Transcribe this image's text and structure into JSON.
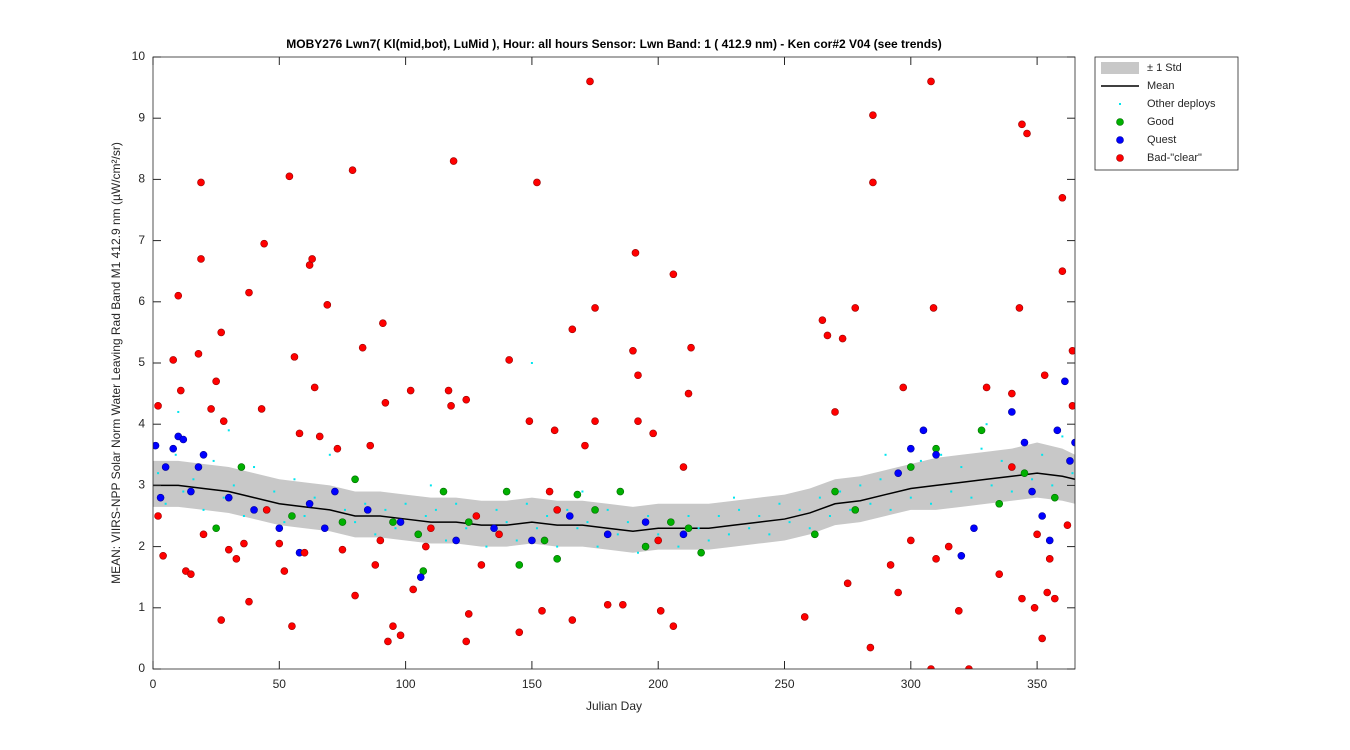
{
  "chart_data": {
    "type": "scatter",
    "title": "MOBY276   Lwn7( Kl(mid,bot), LuMid ),   Hour: all hours  Sensor: Lwn Band: 1 ( 412.9 nm)  - Ken cor#2 V04 (see trends)",
    "xlabel": "Julian Day",
    "ylabel": "MEAN: VIIRS-NPP Solar Norm Water Leaving Rad Band M1 412.9 nm (µW/cm²/sr)",
    "xlim": [
      0,
      365
    ],
    "ylim": [
      0,
      10
    ],
    "xticks": [
      0,
      50,
      100,
      150,
      200,
      250,
      300,
      350
    ],
    "yticks": [
      0,
      1,
      2,
      3,
      4,
      5,
      6,
      7,
      8,
      9,
      10
    ],
    "legend": "outside-top-right",
    "series": [
      {
        "name": "± 1 Std",
        "style": "band",
        "color": "#c8c8c8",
        "x": [
          0,
          10,
          20,
          30,
          40,
          50,
          60,
          70,
          80,
          90,
          100,
          110,
          120,
          130,
          140,
          150,
          160,
          170,
          180,
          190,
          200,
          210,
          220,
          230,
          240,
          250,
          260,
          270,
          280,
          290,
          300,
          310,
          320,
          330,
          340,
          350,
          360,
          365
        ],
        "values": [
          3.4,
          3.4,
          3.35,
          3.3,
          3.2,
          3.1,
          3.05,
          3.0,
          2.9,
          2.9,
          2.85,
          2.8,
          2.8,
          2.75,
          2.75,
          2.8,
          2.75,
          2.75,
          2.7,
          2.65,
          2.7,
          2.7,
          2.7,
          2.75,
          2.8,
          2.85,
          2.95,
          3.1,
          3.15,
          3.25,
          3.35,
          3.45,
          3.5,
          3.55,
          3.6,
          3.7,
          3.6,
          3.5
        ],
        "lower": [
          2.65,
          2.65,
          2.6,
          2.55,
          2.45,
          2.35,
          2.3,
          2.25,
          2.15,
          2.15,
          2.1,
          2.05,
          2.05,
          2.0,
          2.0,
          2.05,
          2.0,
          2.0,
          1.95,
          1.9,
          1.95,
          1.95,
          1.95,
          2.0,
          2.05,
          2.1,
          2.2,
          2.35,
          2.4,
          2.5,
          2.6,
          2.6,
          2.65,
          2.7,
          2.75,
          2.8,
          2.75,
          2.7
        ]
      },
      {
        "name": "Mean",
        "style": "line",
        "color": "#000000",
        "x": [
          0,
          10,
          20,
          30,
          40,
          50,
          60,
          70,
          80,
          90,
          100,
          110,
          120,
          130,
          140,
          150,
          160,
          170,
          180,
          190,
          200,
          210,
          220,
          230,
          240,
          250,
          260,
          270,
          280,
          290,
          300,
          310,
          320,
          330,
          340,
          350,
          360,
          365
        ],
        "values": [
          3.0,
          3.0,
          2.95,
          2.9,
          2.8,
          2.7,
          2.65,
          2.6,
          2.5,
          2.5,
          2.45,
          2.4,
          2.4,
          2.35,
          2.35,
          2.4,
          2.35,
          2.35,
          2.3,
          2.25,
          2.3,
          2.3,
          2.3,
          2.35,
          2.4,
          2.45,
          2.55,
          2.7,
          2.75,
          2.85,
          2.95,
          3.0,
          3.05,
          3.1,
          3.15,
          3.2,
          3.15,
          3.1
        ]
      },
      {
        "name": "Other deploys",
        "style": "point",
        "color": "#00e5ee",
        "x": [
          2,
          5,
          9,
          12,
          16,
          20,
          24,
          28,
          32,
          36,
          40,
          44,
          48,
          52,
          56,
          60,
          64,
          68,
          72,
          76,
          80,
          84,
          88,
          92,
          96,
          100,
          104,
          108,
          112,
          116,
          120,
          124,
          128,
          132,
          136,
          140,
          144,
          148,
          150,
          152,
          156,
          160,
          164,
          168,
          172,
          176,
          180,
          184,
          188,
          192,
          196,
          200,
          204,
          208,
          212,
          216,
          220,
          224,
          228,
          232,
          236,
          240,
          244,
          248,
          252,
          256,
          260,
          264,
          268,
          272,
          276,
          280,
          284,
          288,
          292,
          296,
          300,
          304,
          308,
          312,
          316,
          320,
          324,
          328,
          332,
          336,
          340,
          344,
          348,
          352,
          356,
          360,
          364,
          10,
          30,
          70,
          110,
          170,
          230,
          290,
          330
        ],
        "values": [
          3.2,
          2.7,
          3.5,
          2.9,
          3.1,
          2.6,
          3.4,
          2.8,
          3.0,
          2.5,
          3.3,
          2.6,
          2.9,
          2.4,
          3.1,
          2.5,
          2.8,
          2.3,
          2.9,
          2.6,
          2.4,
          2.7,
          2.2,
          2.6,
          2.3,
          2.7,
          2.2,
          2.5,
          2.6,
          2.1,
          2.7,
          2.3,
          2.5,
          2.0,
          2.6,
          2.4,
          2.1,
          2.7,
          5.0,
          2.3,
          2.5,
          2.0,
          2.6,
          2.3,
          2.4,
          2.0,
          2.6,
          2.2,
          2.4,
          1.9,
          2.5,
          2.2,
          2.4,
          2.0,
          2.5,
          2.3,
          2.1,
          2.5,
          2.2,
          2.6,
          2.3,
          2.5,
          2.2,
          2.7,
          2.4,
          2.6,
          2.3,
          2.8,
          2.5,
          2.9,
          2.6,
          3.0,
          2.7,
          3.1,
          2.6,
          3.2,
          2.8,
          3.4,
          2.7,
          3.5,
          2.9,
          3.3,
          2.8,
          3.6,
          3.0,
          3.4,
          2.9,
          3.7,
          3.1,
          3.5,
          3.0,
          3.8,
          3.2,
          4.2,
          3.9,
          3.5,
          3.0,
          2.9,
          2.8,
          3.5,
          4.0
        ]
      },
      {
        "name": "Good",
        "style": "circle",
        "color": "#00b000",
        "x": [
          25,
          35,
          55,
          75,
          80,
          95,
          105,
          107,
          115,
          125,
          140,
          145,
          155,
          160,
          168,
          175,
          185,
          195,
          205,
          212,
          217,
          262,
          270,
          278,
          300,
          310,
          328,
          335,
          345,
          357
        ],
        "values": [
          2.3,
          3.3,
          2.5,
          2.4,
          3.1,
          2.4,
          2.2,
          1.6,
          2.9,
          2.4,
          2.9,
          1.7,
          2.1,
          1.8,
          2.85,
          2.6,
          2.9,
          2.0,
          2.4,
          2.3,
          1.9,
          2.2,
          2.9,
          2.6,
          3.3,
          3.6,
          3.9,
          2.7,
          3.2,
          2.8
        ]
      },
      {
        "name": "Quest",
        "style": "circle",
        "color": "#0000ff",
        "x": [
          1,
          3,
          5,
          8,
          10,
          12,
          15,
          18,
          20,
          30,
          40,
          50,
          58,
          62,
          68,
          72,
          85,
          98,
          106,
          120,
          135,
          150,
          165,
          180,
          195,
          210,
          295,
          300,
          305,
          310,
          320,
          325,
          340,
          345,
          348,
          352,
          355,
          358,
          361,
          363,
          365
        ],
        "values": [
          3.65,
          2.8,
          3.3,
          3.6,
          3.8,
          3.75,
          2.9,
          3.3,
          3.5,
          2.8,
          2.6,
          2.3,
          1.9,
          2.7,
          2.3,
          2.9,
          2.6,
          2.4,
          1.5,
          2.1,
          2.3,
          2.1,
          2.5,
          2.2,
          2.4,
          2.2,
          3.2,
          3.6,
          3.9,
          3.5,
          1.85,
          2.3,
          4.2,
          3.7,
          2.9,
          2.5,
          2.1,
          3.9,
          4.7,
          3.4,
          3.7
        ]
      },
      {
        "name": "Bad-\"clear\"",
        "style": "circle",
        "color": "#ff0000",
        "x": [
          2,
          4,
          8,
          10,
          11,
          13,
          15,
          18,
          19,
          19,
          23,
          25,
          27,
          27,
          28,
          33,
          36,
          38,
          38,
          43,
          44,
          50,
          52,
          54,
          55,
          56,
          58,
          62,
          63,
          64,
          66,
          69,
          73,
          75,
          79,
          80,
          83,
          86,
          88,
          91,
          92,
          93,
          95,
          98,
          102,
          103,
          108,
          117,
          118,
          119,
          124,
          125,
          124,
          128,
          137,
          141,
          145,
          149,
          152,
          154,
          157,
          159,
          166,
          166,
          171,
          173,
          175,
          175,
          180,
          186,
          190,
          191,
          192,
          192,
          198,
          201,
          206,
          206,
          210,
          212,
          213,
          258,
          265,
          267,
          270,
          273,
          275,
          278,
          285,
          285,
          284,
          292,
          295,
          297,
          308,
          308,
          309,
          315,
          319,
          323,
          330,
          335,
          340,
          343,
          344,
          346,
          344,
          349,
          352,
          354,
          353,
          357,
          360,
          360,
          364,
          364,
          362,
          2,
          20,
          30,
          45,
          60,
          90,
          110,
          130,
          160,
          200,
          340,
          350,
          355,
          300,
          310
        ],
        "values": [
          4.3,
          1.85,
          5.05,
          6.1,
          4.55,
          1.6,
          1.55,
          5.15,
          7.95,
          6.7,
          4.25,
          4.7,
          5.5,
          0.8,
          4.05,
          1.8,
          2.05,
          6.15,
          1.1,
          4.25,
          6.95,
          2.05,
          1.6,
          8.05,
          0.7,
          5.1,
          3.85,
          6.6,
          6.7,
          4.6,
          3.8,
          5.95,
          3.6,
          1.95,
          8.15,
          1.2,
          5.25,
          3.65,
          1.7,
          5.65,
          4.35,
          0.45,
          0.7,
          0.55,
          4.55,
          1.3,
          2.0,
          4.55,
          4.3,
          8.3,
          4.4,
          0.9,
          0.45,
          2.5,
          2.2,
          5.05,
          0.6,
          4.05,
          7.95,
          0.95,
          2.9,
          3.9,
          5.55,
          0.8,
          3.65,
          9.6,
          5.9,
          4.05,
          1.05,
          1.05,
          5.2,
          6.8,
          4.8,
          4.05,
          3.85,
          0.95,
          6.45,
          0.7,
          3.3,
          4.5,
          5.25,
          0.85,
          5.7,
          5.45,
          4.2,
          5.4,
          1.4,
          5.9,
          9.05,
          7.95,
          0.35,
          1.7,
          1.25,
          4.6,
          9.6,
          0.0,
          5.9,
          2.0,
          0.95,
          0.0,
          4.6,
          1.55,
          4.5,
          5.9,
          8.9,
          8.75,
          1.15,
          1.0,
          0.5,
          1.25,
          4.8,
          1.15,
          7.7,
          6.5,
          5.2,
          4.3,
          2.35,
          2.5,
          2.2,
          1.95,
          2.6,
          1.9,
          2.1,
          2.3,
          1.7,
          2.6,
          2.1,
          3.3,
          2.2,
          1.8,
          2.1,
          1.8
        ]
      }
    ]
  }
}
